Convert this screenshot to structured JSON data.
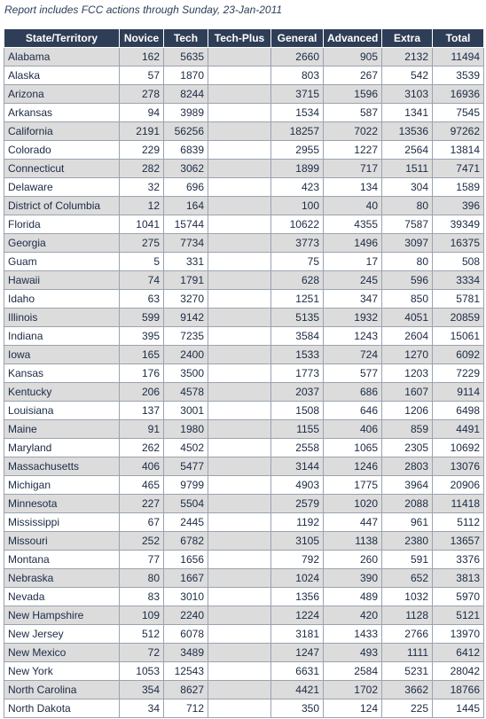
{
  "caption": "Report includes FCC actions through Sunday, 23-Jan-2011",
  "table": {
    "headers": [
      "State/Territory",
      "Novice",
      "Tech",
      "Tech-Plus",
      "General",
      "Advanced",
      "Extra",
      "Total"
    ],
    "rows": [
      [
        "Alabama",
        "162",
        "5635",
        "",
        "2660",
        "905",
        "2132",
        "11494"
      ],
      [
        "Alaska",
        "57",
        "1870",
        "",
        "803",
        "267",
        "542",
        "3539"
      ],
      [
        "Arizona",
        "278",
        "8244",
        "",
        "3715",
        "1596",
        "3103",
        "16936"
      ],
      [
        "Arkansas",
        "94",
        "3989",
        "",
        "1534",
        "587",
        "1341",
        "7545"
      ],
      [
        "California",
        "2191",
        "56256",
        "",
        "18257",
        "7022",
        "13536",
        "97262"
      ],
      [
        "Colorado",
        "229",
        "6839",
        "",
        "2955",
        "1227",
        "2564",
        "13814"
      ],
      [
        "Connecticut",
        "282",
        "3062",
        "",
        "1899",
        "717",
        "1511",
        "7471"
      ],
      [
        "Delaware",
        "32",
        "696",
        "",
        "423",
        "134",
        "304",
        "1589"
      ],
      [
        "District of Columbia",
        "12",
        "164",
        "",
        "100",
        "40",
        "80",
        "396"
      ],
      [
        "Florida",
        "1041",
        "15744",
        "",
        "10622",
        "4355",
        "7587",
        "39349"
      ],
      [
        "Georgia",
        "275",
        "7734",
        "",
        "3773",
        "1496",
        "3097",
        "16375"
      ],
      [
        "Guam",
        "5",
        "331",
        "",
        "75",
        "17",
        "80",
        "508"
      ],
      [
        "Hawaii",
        "74",
        "1791",
        "",
        "628",
        "245",
        "596",
        "3334"
      ],
      [
        "Idaho",
        "63",
        "3270",
        "",
        "1251",
        "347",
        "850",
        "5781"
      ],
      [
        "Illinois",
        "599",
        "9142",
        "",
        "5135",
        "1932",
        "4051",
        "20859"
      ],
      [
        "Indiana",
        "395",
        "7235",
        "",
        "3584",
        "1243",
        "2604",
        "15061"
      ],
      [
        "Iowa",
        "165",
        "2400",
        "",
        "1533",
        "724",
        "1270",
        "6092"
      ],
      [
        "Kansas",
        "176",
        "3500",
        "",
        "1773",
        "577",
        "1203",
        "7229"
      ],
      [
        "Kentucky",
        "206",
        "4578",
        "",
        "2037",
        "686",
        "1607",
        "9114"
      ],
      [
        "Louisiana",
        "137",
        "3001",
        "",
        "1508",
        "646",
        "1206",
        "6498"
      ],
      [
        "Maine",
        "91",
        "1980",
        "",
        "1155",
        "406",
        "859",
        "4491"
      ],
      [
        "Maryland",
        "262",
        "4502",
        "",
        "2558",
        "1065",
        "2305",
        "10692"
      ],
      [
        "Massachusetts",
        "406",
        "5477",
        "",
        "3144",
        "1246",
        "2803",
        "13076"
      ],
      [
        "Michigan",
        "465",
        "9799",
        "",
        "4903",
        "1775",
        "3964",
        "20906"
      ],
      [
        "Minnesota",
        "227",
        "5504",
        "",
        "2579",
        "1020",
        "2088",
        "11418"
      ],
      [
        "Mississippi",
        "67",
        "2445",
        "",
        "1192",
        "447",
        "961",
        "5112"
      ],
      [
        "Missouri",
        "252",
        "6782",
        "",
        "3105",
        "1138",
        "2380",
        "13657"
      ],
      [
        "Montana",
        "77",
        "1656",
        "",
        "792",
        "260",
        "591",
        "3376"
      ],
      [
        "Nebraska",
        "80",
        "1667",
        "",
        "1024",
        "390",
        "652",
        "3813"
      ],
      [
        "Nevada",
        "83",
        "3010",
        "",
        "1356",
        "489",
        "1032",
        "5970"
      ],
      [
        "New Hampshire",
        "109",
        "2240",
        "",
        "1224",
        "420",
        "1128",
        "5121"
      ],
      [
        "New Jersey",
        "512",
        "6078",
        "",
        "3181",
        "1433",
        "2766",
        "13970"
      ],
      [
        "New Mexico",
        "72",
        "3489",
        "",
        "1247",
        "493",
        "1111",
        "6412"
      ],
      [
        "New York",
        "1053",
        "12543",
        "",
        "6631",
        "2584",
        "5231",
        "28042"
      ],
      [
        "North Carolina",
        "354",
        "8627",
        "",
        "4421",
        "1702",
        "3662",
        "18766"
      ],
      [
        "North Dakota",
        "34",
        "712",
        "",
        "350",
        "124",
        "225",
        "1445"
      ]
    ]
  }
}
